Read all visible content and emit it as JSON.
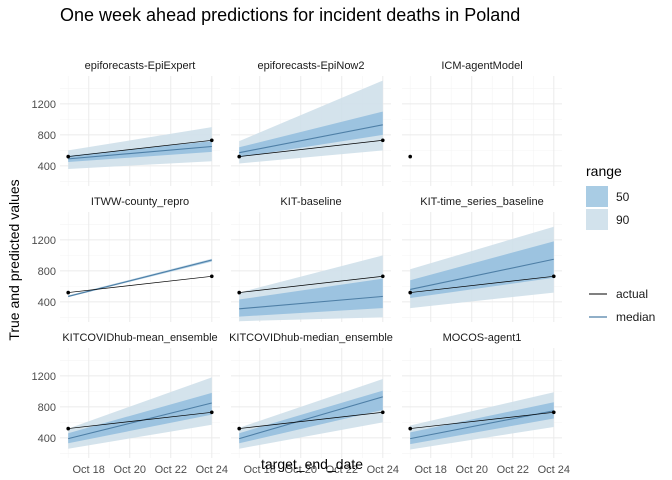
{
  "chart_data": {
    "type": "line",
    "title": "One week ahead predictions for incident deaths in Poland",
    "xlabel": "target_end_date",
    "ylabel": "True and predicted values",
    "x_ticks": [
      "Oct 18",
      "Oct 20",
      "Oct 22",
      "Oct 24"
    ],
    "y_ticks": [
      400,
      800,
      1200
    ],
    "xlim": [
      "Oct 16.6",
      "Oct 24.4"
    ],
    "ylim": [
      140,
      1560
    ],
    "actual_dates": [
      "Oct 17",
      "Oct 24"
    ],
    "actual_values": [
      520,
      730
    ],
    "forecast_dates": [
      "Oct 17",
      "Oct 24"
    ],
    "legend": {
      "range_title": "range",
      "range_items": [
        {
          "label": "50",
          "color": "#a9cce4"
        },
        {
          "label": "90",
          "color": "#d2e2ec"
        }
      ],
      "line_items": [
        {
          "label": "actual",
          "color": "#000000"
        },
        {
          "label": "median",
          "color": "#4e7fa6"
        }
      ]
    },
    "colors": {
      "band50": "#8ab8dc",
      "band90": "#cfe0ea",
      "median": "#4e7fa6",
      "actual": "#000000",
      "panel_bg": "#ffffff",
      "grid": "#ebebeb"
    },
    "panels": [
      {
        "name": "epiforecasts-EpiExpert",
        "median": [
          490,
          650
        ],
        "q50": [
          [
            450,
            530
          ],
          [
            580,
            720
          ]
        ],
        "q90": [
          [
            360,
            600
          ],
          [
            460,
            900
          ]
        ]
      },
      {
        "name": "epiforecasts-EpiNow2",
        "median": [
          570,
          930
        ],
        "q50": [
          [
            510,
            640
          ],
          [
            800,
            1100
          ]
        ],
        "q90": [
          [
            430,
            720
          ],
          [
            600,
            1500
          ]
        ]
      },
      {
        "name": "ICM-agentModel",
        "median": null,
        "q50": null,
        "q90": null,
        "actual_only_first": true
      },
      {
        "name": "ITWW-county_repro",
        "median": [
          470,
          940
        ],
        "q50": [
          [
            465,
            478
          ],
          [
            925,
            950
          ]
        ],
        "q90": [
          [
            460,
            484
          ],
          [
            918,
            958
          ]
        ]
      },
      {
        "name": "KIT-baseline",
        "median": [
          310,
          470
        ],
        "q50": [
          [
            210,
            430
          ],
          [
            320,
            700
          ]
        ],
        "q90": [
          [
            150,
            520
          ],
          [
            200,
            1000
          ]
        ]
      },
      {
        "name": "KIT-time_series_baseline",
        "median": [
          560,
          950
        ],
        "q50": [
          [
            450,
            680
          ],
          [
            710,
            1180
          ]
        ],
        "q90": [
          [
            320,
            820
          ],
          [
            520,
            1370
          ]
        ]
      },
      {
        "name": "KITCOVIDhub-mean_ensemble",
        "median": [
          390,
          850
        ],
        "q50": [
          [
            330,
            460
          ],
          [
            700,
            980
          ]
        ],
        "q90": [
          [
            260,
            520
          ],
          [
            570,
            1180
          ]
        ]
      },
      {
        "name": "KITCOVIDhub-median_ensemble",
        "median": [
          390,
          930
        ],
        "q50": [
          [
            330,
            460
          ],
          [
            760,
            1010
          ]
        ],
        "q90": [
          [
            260,
            530
          ],
          [
            600,
            1160
          ]
        ]
      },
      {
        "name": "MOCOS-agent1",
        "median": [
          390,
          750
        ],
        "q50": [
          [
            320,
            470
          ],
          [
            650,
            860
          ]
        ],
        "q90": [
          [
            250,
            560
          ],
          [
            540,
            990
          ]
        ]
      }
    ]
  }
}
